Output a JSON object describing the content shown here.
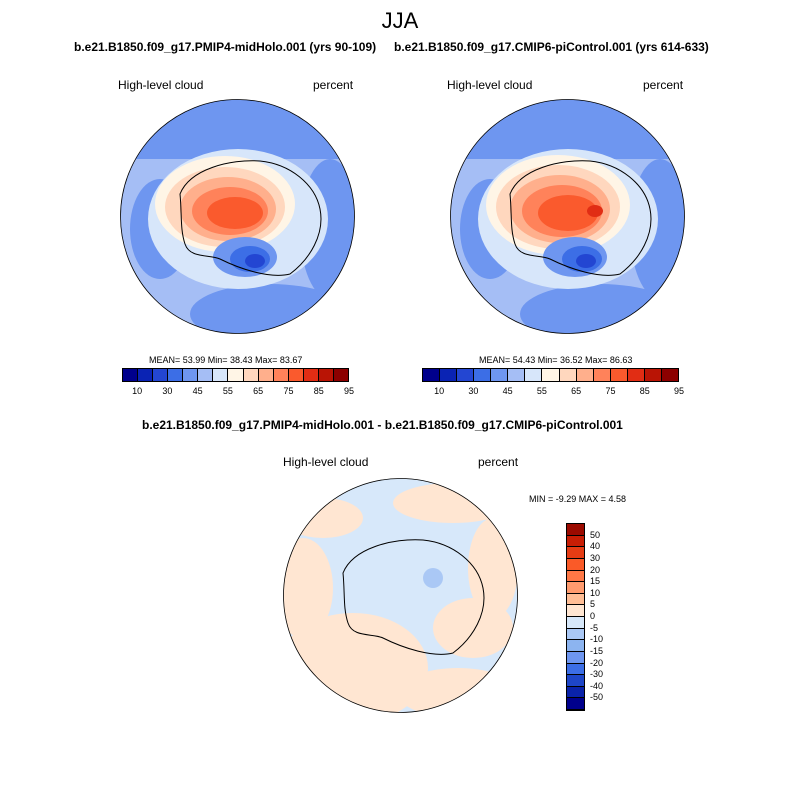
{
  "season": "JJA",
  "panels": [
    {
      "run_title": "b.e21.B1850.f09_g17.PMIP4-midHolo.001 (yrs 90-109)",
      "variable": "High-level cloud",
      "units": "percent",
      "stats": "MEAN=  53.99  Min=  38.43  Max=  83.67"
    },
    {
      "run_title": "b.e21.B1850.f09_g17.CMIP6-piControl.001 (yrs 614-633)",
      "variable": "High-level cloud",
      "units": "percent",
      "stats": "MEAN=  54.43  Min=  36.52  Max=  86.63"
    }
  ],
  "colorbar": {
    "colors": [
      "#00008c",
      "#0a23b4",
      "#2346d2",
      "#3c6ee6",
      "#6e96f0",
      "#a5bef5",
      "#d7e6fa",
      "#fff5e6",
      "#ffd7be",
      "#ffaf8c",
      "#ff825a",
      "#fa5a2d",
      "#e12d14",
      "#b91405",
      "#8c0000"
    ],
    "tick_labels": [
      "10",
      "30",
      "45",
      "55",
      "65",
      "75",
      "85",
      "95"
    ]
  },
  "diff_panel": {
    "title": "b.e21.B1850.f09_g17.PMIP4-midHolo.001 - b.e21.B1850.f09_g17.CMIP6-piControl.001",
    "variable": "High-level cloud",
    "units": "percent",
    "stats": "MIN =  -9.29 MAX =   4.58",
    "colorbar": {
      "colors_top_to_bottom": [
        "#9b0a00",
        "#c81e05",
        "#e63c14",
        "#fa5a28",
        "#ff7846",
        "#ff9b6e",
        "#ffbe96",
        "#ffe6d2",
        "#d7e8fa",
        "#aac8f5",
        "#8cb4f0",
        "#6e96f0",
        "#3c6ee6",
        "#1e46c8",
        "#0a23aa",
        "#00008c"
      ],
      "labels_top_to_bottom": [
        "50",
        "40",
        "30",
        "20",
        "15",
        "10",
        "5",
        "0",
        "-5",
        "-10",
        "-15",
        "-20",
        "-30",
        "-40",
        "-50"
      ]
    }
  }
}
